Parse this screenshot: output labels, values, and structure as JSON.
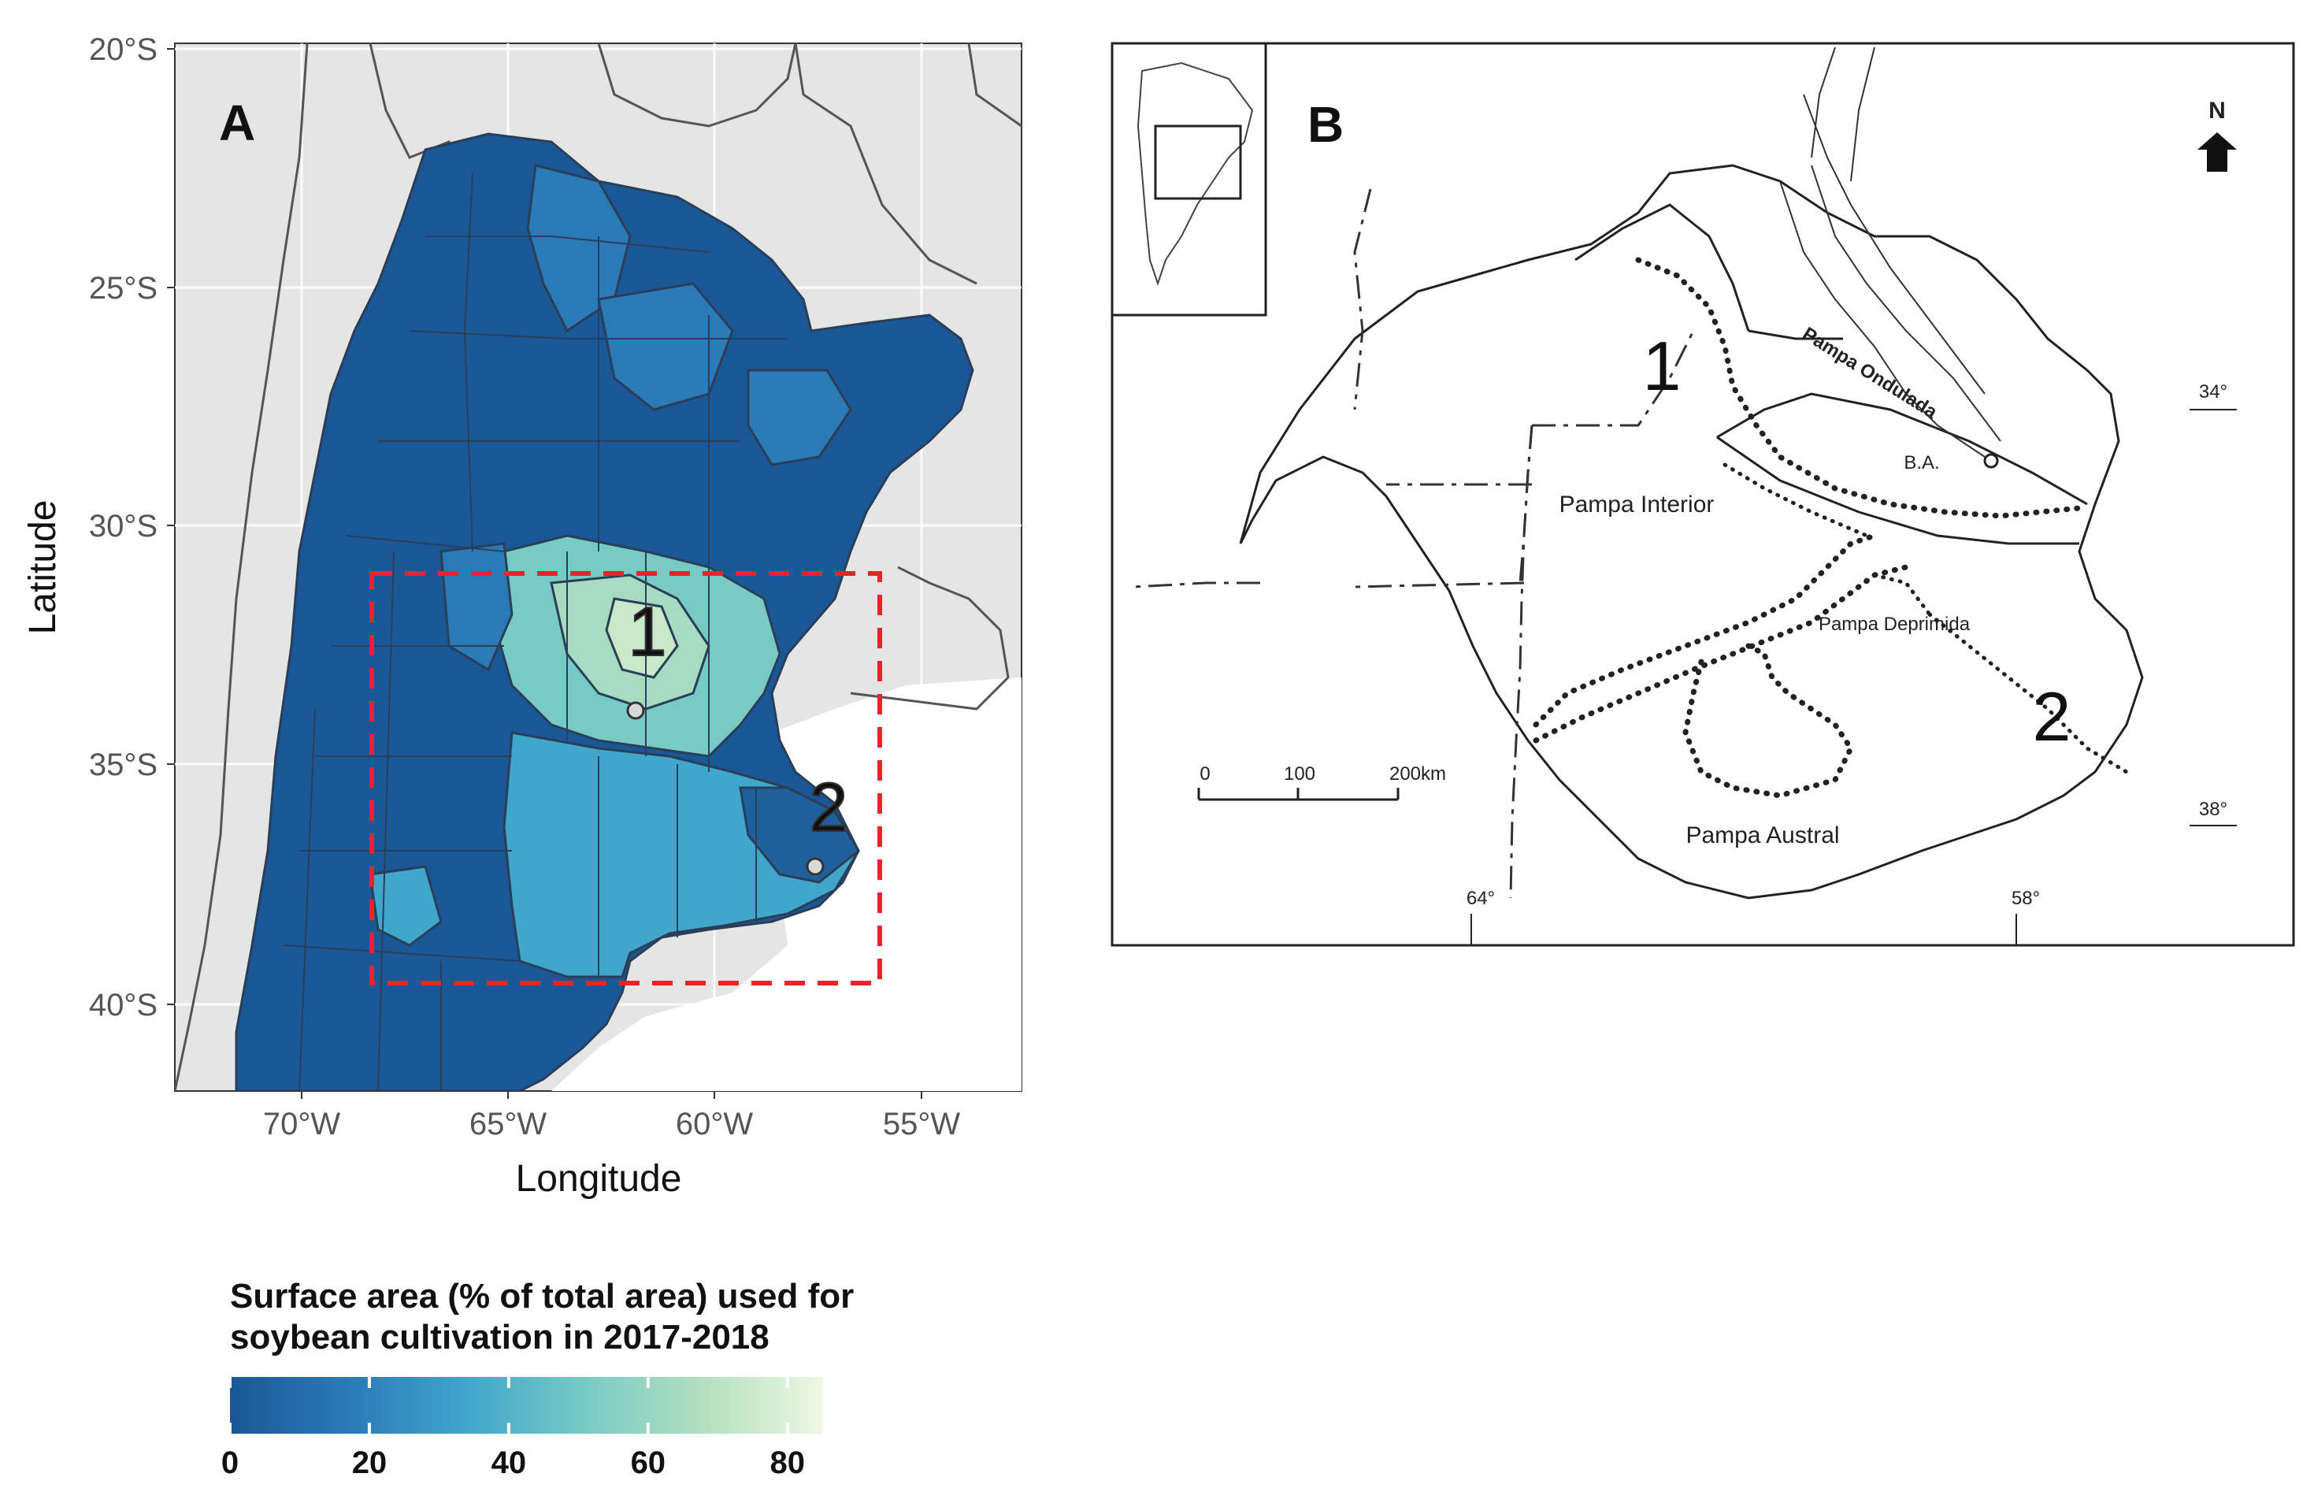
{
  "panel_a": {
    "letter": "A",
    "x_axis_title": "Longitude",
    "y_axis_title": "Latitude",
    "x_ticks": [
      "70°W",
      "65°W",
      "60°W",
      "55°W"
    ],
    "y_ticks": [
      "20°S",
      "25°S",
      "30°S",
      "35°S",
      "40°S"
    ],
    "site_labels": [
      "1",
      "2"
    ],
    "study_box_color": "#e8242b",
    "land_background_color": "#e5e5e5",
    "choropleth_low_color": "#1a5796",
    "choropleth_high_color": "#eef7e3"
  },
  "legend": {
    "title_line1": "Surface area (% of total area) used for",
    "title_line2": "soybean cultivation in 2017-2018",
    "ticks": [
      "0",
      "20",
      "40",
      "60",
      "80"
    ],
    "scale": [
      0,
      85
    ],
    "colors": [
      "#1a5796",
      "#2a7ab8",
      "#41a6cc",
      "#78cbc4",
      "#b3e0c0",
      "#eef7e3"
    ]
  },
  "panel_b": {
    "letter": "B",
    "regions": [
      "Pampa Ondulada",
      "Pampa Interior",
      "Pampa Deprimida",
      "Pampa Austral"
    ],
    "city_label": "B.A.",
    "north_label": "N",
    "site_labels": [
      "1",
      "2"
    ],
    "lat_labels": [
      "34°",
      "38°"
    ],
    "lon_labels": [
      "64°",
      "58°"
    ],
    "scale_ticks": [
      "0",
      "100",
      "200km"
    ]
  }
}
